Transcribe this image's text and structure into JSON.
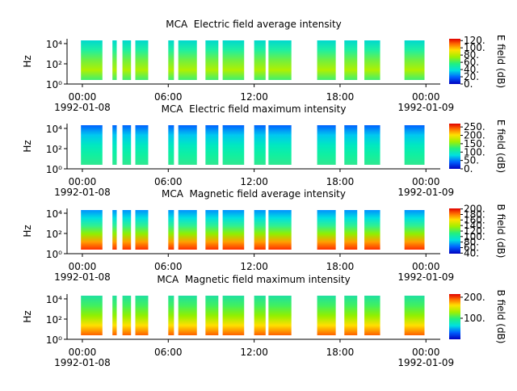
{
  "chart_data": [
    {
      "type": "spectrogram",
      "title": "MCA  Electric field average intensity",
      "ylabel": "Hz",
      "zlabel": "E field (dB)",
      "log_y": true,
      "ylim": [
        1,
        30000
      ],
      "yticks": [
        {
          "value": 1,
          "label": "10⁰"
        },
        {
          "value": 100,
          "label": "10²"
        },
        {
          "value": 10000,
          "label": "10⁴"
        }
      ],
      "xlim": [
        -1.07,
        25
      ],
      "xticks": [
        {
          "value": 0,
          "label": "00:00",
          "date": "1992-01-08"
        },
        {
          "value": 6,
          "label": "06:00"
        },
        {
          "value": 12,
          "label": "12:00"
        },
        {
          "value": 18,
          "label": "18:00"
        },
        {
          "value": 24,
          "label": "00:00",
          "date": "1992-01-09"
        }
      ],
      "zlim": [
        0,
        125
      ],
      "zticks": [
        {
          "value": 0,
          "label": "0."
        },
        {
          "value": 20,
          "label": "20."
        },
        {
          "value": 40,
          "label": "40."
        },
        {
          "value": 60,
          "label": "60."
        },
        {
          "value": 80,
          "label": "80."
        },
        {
          "value": 100,
          "label": "100."
        },
        {
          "value": 120,
          "label": "120."
        }
      ],
      "colors": [
        "#00d8d0",
        "#20f0a0",
        "#70f040",
        "#b0f000",
        "#40f070"
      ],
      "segments": [
        [
          -0.1,
          1.4
        ],
        [
          2.1,
          2.4
        ],
        [
          2.8,
          3.4
        ],
        [
          3.7,
          4.6
        ],
        [
          6.0,
          6.4
        ],
        [
          6.7,
          8.0
        ],
        [
          8.6,
          9.5
        ],
        [
          9.8,
          11.3
        ],
        [
          12.0,
          12.8
        ],
        [
          13.0,
          14.6
        ],
        [
          16.4,
          17.7
        ],
        [
          18.3,
          19.2
        ],
        [
          19.7,
          20.8
        ],
        [
          22.5,
          23.9
        ]
      ]
    },
    {
      "type": "spectrogram",
      "title": "MCA  Electric field maximum intensity",
      "ylabel": "Hz",
      "zlabel": "E field (dB)",
      "log_y": true,
      "ylim": [
        1,
        30000
      ],
      "yticks": [
        {
          "value": 1,
          "label": "10⁰"
        },
        {
          "value": 100,
          "label": "10²"
        },
        {
          "value": 10000,
          "label": "10⁴"
        }
      ],
      "xlim": [
        -1.07,
        25
      ],
      "xticks": [
        {
          "value": 0,
          "label": "00:00",
          "date": "1992-01-08"
        },
        {
          "value": 6,
          "label": "06:00"
        },
        {
          "value": 12,
          "label": "12:00"
        },
        {
          "value": 18,
          "label": "18:00"
        },
        {
          "value": 24,
          "label": "00:00",
          "date": "1992-01-09"
        }
      ],
      "zlim": [
        0,
        270
      ],
      "zticks": [
        {
          "value": 0,
          "label": "0."
        },
        {
          "value": 50,
          "label": "50."
        },
        {
          "value": 100,
          "label": "100."
        },
        {
          "value": 150,
          "label": "150."
        },
        {
          "value": 200,
          "label": "200."
        },
        {
          "value": 250,
          "label": "250."
        }
      ],
      "colors": [
        "#0060ff",
        "#00c8f0",
        "#00e8c0",
        "#10f0a0",
        "#30e890"
      ],
      "segments": [
        [
          -0.1,
          1.4
        ],
        [
          2.1,
          2.4
        ],
        [
          2.8,
          3.4
        ],
        [
          3.7,
          4.6
        ],
        [
          6.0,
          6.4
        ],
        [
          6.7,
          8.0
        ],
        [
          8.6,
          9.5
        ],
        [
          9.8,
          11.3
        ],
        [
          12.0,
          12.8
        ],
        [
          13.0,
          14.6
        ],
        [
          16.4,
          17.7
        ],
        [
          18.3,
          19.2
        ],
        [
          19.7,
          20.8
        ],
        [
          22.5,
          23.9
        ]
      ]
    },
    {
      "type": "spectrogram",
      "title": "MCA  Magnetic field average intensity",
      "ylabel": "Hz",
      "zlabel": "B field (dB)",
      "log_y": true,
      "ylim": [
        1,
        30000
      ],
      "yticks": [
        {
          "value": 1,
          "label": "10⁰"
        },
        {
          "value": 100,
          "label": "10²"
        },
        {
          "value": 10000,
          "label": "10⁴"
        }
      ],
      "xlim": [
        -1.07,
        25
      ],
      "xticks": [
        {
          "value": 0,
          "label": "00:00",
          "date": "1992-01-08"
        },
        {
          "value": 6,
          "label": "06:00"
        },
        {
          "value": 12,
          "label": "12:00"
        },
        {
          "value": 18,
          "label": "18:00"
        },
        {
          "value": 24,
          "label": "00:00",
          "date": "1992-01-09"
        }
      ],
      "zlim": [
        38,
        202
      ],
      "zticks": [
        {
          "value": 40,
          "label": "40."
        },
        {
          "value": 60,
          "label": "60."
        },
        {
          "value": 80,
          "label": "80."
        },
        {
          "value": 100,
          "label": "100."
        },
        {
          "value": 120,
          "label": "120."
        },
        {
          "value": 140,
          "label": "140."
        },
        {
          "value": 160,
          "label": "160."
        },
        {
          "value": 180,
          "label": "180."
        },
        {
          "value": 200,
          "label": "200."
        }
      ],
      "colors": [
        "#0090ff",
        "#00e0e0",
        "#30f090",
        "#90f000",
        "#ffa000",
        "#ff3000"
      ],
      "segments": [
        [
          -0.1,
          1.4
        ],
        [
          2.1,
          2.4
        ],
        [
          2.8,
          3.4
        ],
        [
          3.7,
          4.6
        ],
        [
          6.0,
          6.4
        ],
        [
          6.7,
          8.0
        ],
        [
          8.6,
          9.5
        ],
        [
          9.8,
          11.3
        ],
        [
          12.0,
          12.8
        ],
        [
          13.0,
          14.6
        ],
        [
          16.4,
          17.7
        ],
        [
          18.3,
          19.2
        ],
        [
          19.7,
          20.8
        ],
        [
          22.5,
          23.9
        ]
      ]
    },
    {
      "type": "spectrogram",
      "title": "MCA  Magnetic field maximum intensity",
      "ylabel": "Hz",
      "zlabel": "B field (dB)",
      "log_y": true,
      "ylim": [
        1,
        30000
      ],
      "yticks": [
        {
          "value": 1,
          "label": "10⁰"
        },
        {
          "value": 100,
          "label": "10²"
        },
        {
          "value": 10000,
          "label": "10⁴"
        }
      ],
      "xlim": [
        -1.07,
        25
      ],
      "xticks": [
        {
          "value": 0,
          "label": "00:00",
          "date": "1992-01-08"
        },
        {
          "value": 6,
          "label": "06:00"
        },
        {
          "value": 12,
          "label": "12:00"
        },
        {
          "value": 18,
          "label": "18:00"
        },
        {
          "value": 24,
          "label": "00:00",
          "date": "1992-01-09"
        }
      ],
      "zlim": [
        0,
        215
      ],
      "zticks": [
        {
          "value": 100,
          "label": "100."
        },
        {
          "value": 200,
          "label": "200."
        }
      ],
      "colors": [
        "#20e0a0",
        "#40f060",
        "#90f000",
        "#ffe000",
        "#ff6000"
      ],
      "segments": [
        [
          -0.1,
          1.4
        ],
        [
          2.1,
          2.4
        ],
        [
          2.8,
          3.4
        ],
        [
          3.7,
          4.6
        ],
        [
          6.0,
          6.4
        ],
        [
          6.7,
          8.0
        ],
        [
          8.6,
          9.5
        ],
        [
          9.8,
          11.3
        ],
        [
          12.0,
          12.8
        ],
        [
          13.0,
          14.6
        ],
        [
          16.4,
          17.7
        ],
        [
          18.3,
          19.2
        ],
        [
          19.7,
          20.8
        ],
        [
          22.5,
          23.9
        ]
      ]
    }
  ]
}
